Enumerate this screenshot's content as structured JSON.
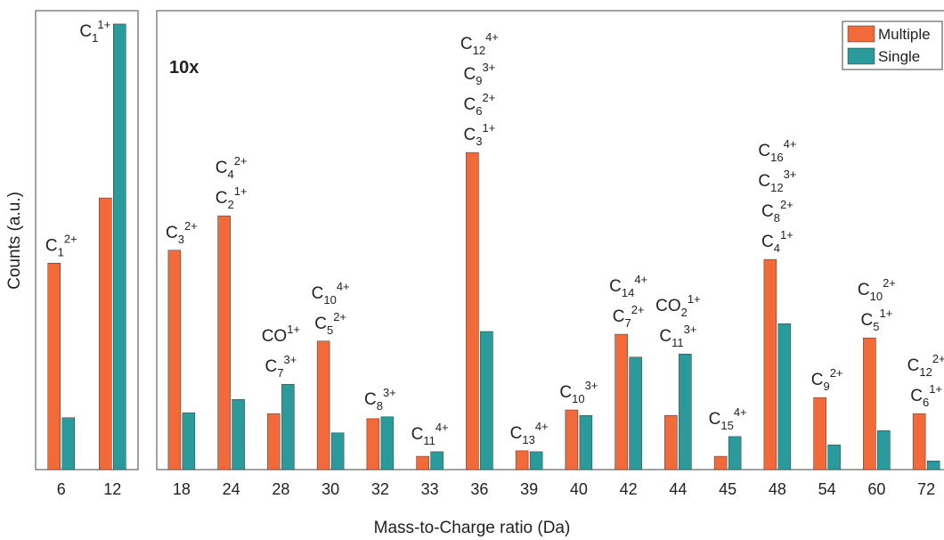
{
  "chart_data": [
    {
      "type": "bar",
      "ylabel": "Counts (a.u.)",
      "categories": [
        "6",
        "12"
      ],
      "series": [
        {
          "color": "#f36a3a",
          "values": [
            45.0,
            59.2
          ]
        },
        {
          "color": "#2b9a9b",
          "values": [
            11.3,
            97.1
          ]
        }
      ],
      "ylim": [
        0,
        100
      ],
      "labels": [
        [
          {
            "text": "C",
            "sub": "1",
            "sup": "2+"
          }
        ],
        [
          {
            "text": "C",
            "sub": "1",
            "sup": "1+"
          }
        ]
      ]
    },
    {
      "type": "bar",
      "xlabel": "Mass-to-Charge ratio (Da)",
      "annotation": "10x",
      "categories": [
        "18",
        "24",
        "28",
        "30",
        "32",
        "33",
        "36",
        "39",
        "40",
        "42",
        "44",
        "45",
        "48",
        "54",
        "60",
        "72"
      ],
      "series": [
        {
          "name": "Multiple",
          "color": "#f36a3a",
          "values": [
            47.8,
            55.3,
            12.2,
            28.0,
            11.1,
            2.9,
            69.1,
            4.1,
            13.0,
            29.5,
            11.8,
            2.9,
            45.8,
            15.7,
            28.7,
            12.2
          ]
        },
        {
          "name": "Single",
          "color": "#2b9a9b",
          "values": [
            12.4,
            15.3,
            18.6,
            8.0,
            11.5,
            3.9,
            30.1,
            3.9,
            11.8,
            24.5,
            25.2,
            7.2,
            31.8,
            5.4,
            8.5,
            1.9
          ]
        }
      ],
      "ylim": [
        0,
        100
      ],
      "legend": "upper right",
      "labels": [
        [
          {
            "text": "C",
            "sub": "3",
            "sup": "2+"
          }
        ],
        [
          {
            "text": "C",
            "sub": "4",
            "sup": "2+"
          },
          {
            "text": "C",
            "sub": "2",
            "sup": "1+"
          }
        ],
        [
          {
            "text": "CO",
            "sup": "1+"
          },
          {
            "text": "C",
            "sub": "7",
            "sup": "3+"
          }
        ],
        [
          {
            "text": "C",
            "sub": "10",
            "sup": "4+"
          },
          {
            "text": "C",
            "sub": "5",
            "sup": "2+"
          }
        ],
        [
          {
            "text": "C",
            "sub": "8",
            "sup": "3+"
          }
        ],
        [
          {
            "text": "C",
            "sub": "11",
            "sup": "4+"
          }
        ],
        [
          {
            "text": "C",
            "sub": "12",
            "sup": "4+"
          },
          {
            "text": "C",
            "sub": "9",
            "sup": "3+"
          },
          {
            "text": "C",
            "sub": "6",
            "sup": "2+"
          },
          {
            "text": "C",
            "sub": "3",
            "sup": "1+"
          }
        ],
        [
          {
            "text": "C",
            "sub": "13",
            "sup": "4+"
          }
        ],
        [
          {
            "text": "C",
            "sub": "10",
            "sup": "3+"
          }
        ],
        [
          {
            "text": "C",
            "sub": "14",
            "sup": "4+"
          },
          {
            "text": "C",
            "sub": "7",
            "sup": "2+"
          }
        ],
        [
          {
            "text": "CO",
            "sub": "2",
            "sup": "1+"
          },
          {
            "text": "C",
            "sub": "11",
            "sup": "3+"
          }
        ],
        [
          {
            "text": "C",
            "sub": "15",
            "sup": "4+"
          }
        ],
        [
          {
            "text": "C",
            "sub": "16",
            "sup": "4+"
          },
          {
            "text": "C",
            "sub": "12",
            "sup": "3+"
          },
          {
            "text": "C",
            "sub": "8",
            "sup": "2+"
          },
          {
            "text": "C",
            "sub": "4",
            "sup": "1+"
          }
        ],
        [
          {
            "text": "C",
            "sub": "9",
            "sup": "2+"
          }
        ],
        [
          {
            "text": "C",
            "sub": "10",
            "sup": "2+"
          },
          {
            "text": "C",
            "sub": "5",
            "sup": "1+"
          }
        ],
        [
          {
            "text": "C",
            "sub": "12",
            "sup": "2+"
          },
          {
            "text": "C",
            "sub": "6",
            "sup": "1+"
          }
        ]
      ]
    }
  ]
}
